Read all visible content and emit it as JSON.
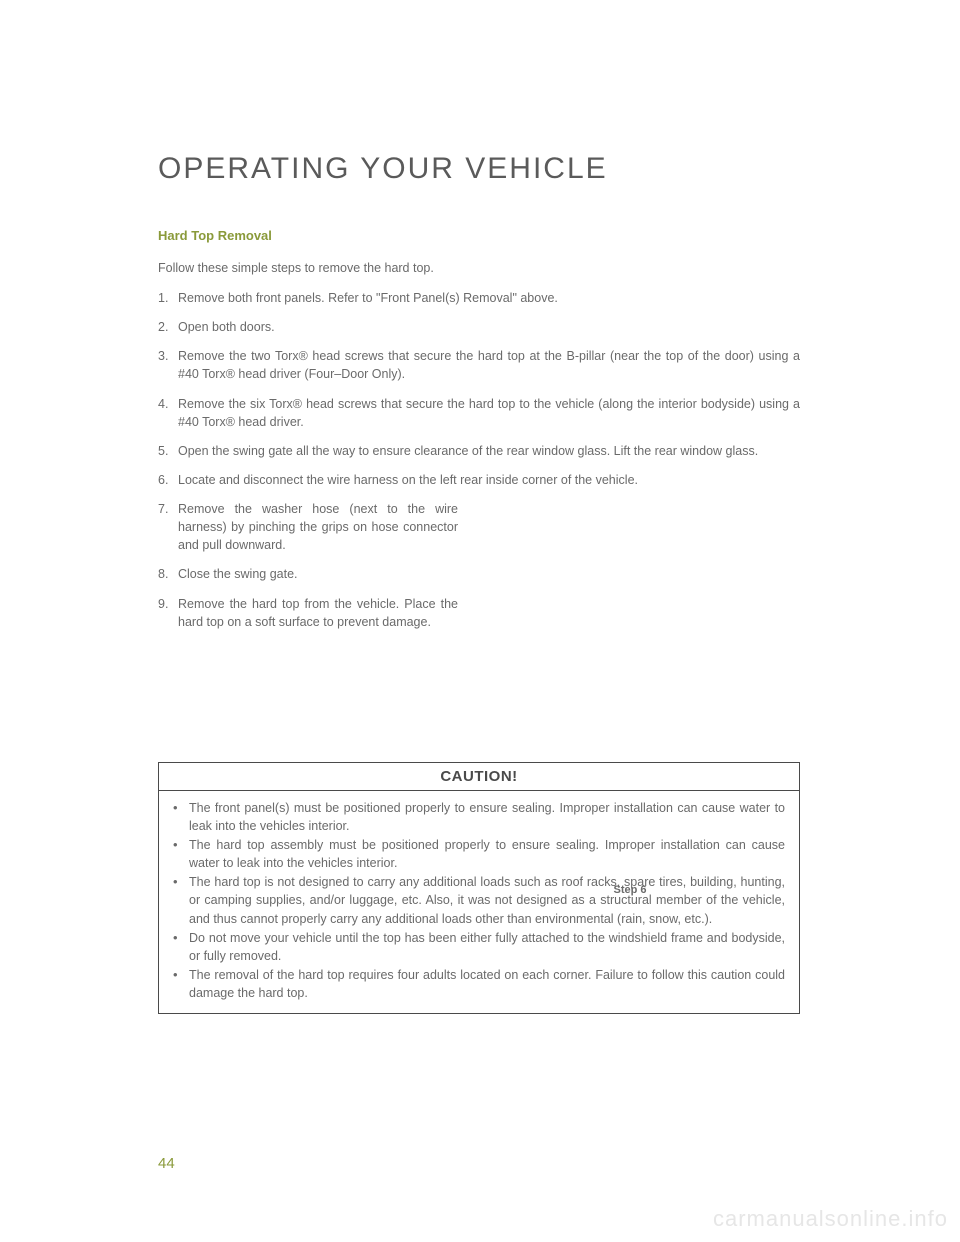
{
  "chapter_title": "OPERATING YOUR VEHICLE",
  "section_heading": "Hard Top Removal",
  "intro": "Follow these simple steps to remove the hard top.",
  "steps": [
    "Remove both front panels. Refer to \"Front Panel(s) Removal\" above.",
    "Open both doors.",
    "Remove the two Torx® head screws that secure the hard top at the B-pillar (near the top of the door) using a #40 Torx® head driver (Four–Door Only).",
    "Remove the six Torx® head screws that secure the hard top to the vehicle (along the interior bodyside) using a #40 Torx® head driver.",
    "Open the swing gate all the way to ensure clearance of the rear window glass. Lift the rear window glass.",
    "Locate and disconnect the wire harness on the left rear inside corner of the vehicle.",
    "Remove the washer hose (next to the wire harness) by pinching the grips on hose connector and pull downward.",
    "Close the swing gate.",
    "Remove the hard top from the vehicle. Place the hard top on a soft surface to prevent damage."
  ],
  "figure_caption": "Step 6",
  "caution": {
    "header": "CAUTION!",
    "items": [
      "The front panel(s) must be positioned properly to ensure sealing. Improper installation can cause water to leak into the vehicles interior.",
      "The hard top assembly must be positioned properly to ensure sealing. Improper installation can cause water to leak into the vehicles interior.",
      "The hard top is not designed to carry any additional loads such as roof racks, spare tires, building, hunting, or camping supplies, and/or luggage, etc. Also, it was not designed as a structural member of the vehicle, and thus cannot properly carry any additional loads other than environmental (rain, snow, etc.).",
      "Do not move your vehicle until the top has been either fully attached to the windshield frame and bodyside, or fully removed.",
      "The removal of the hard top requires four adults located on each corner. Failure to follow this caution could damage the hard top."
    ]
  },
  "page_number": "44",
  "watermark": "carmanualsonline.info",
  "colors": {
    "accent": "#8a9a3a",
    "body_text": "#6a6a6a",
    "border": "#4a4a4a",
    "background": "#ffffff",
    "watermark": "#e6e6e6"
  }
}
